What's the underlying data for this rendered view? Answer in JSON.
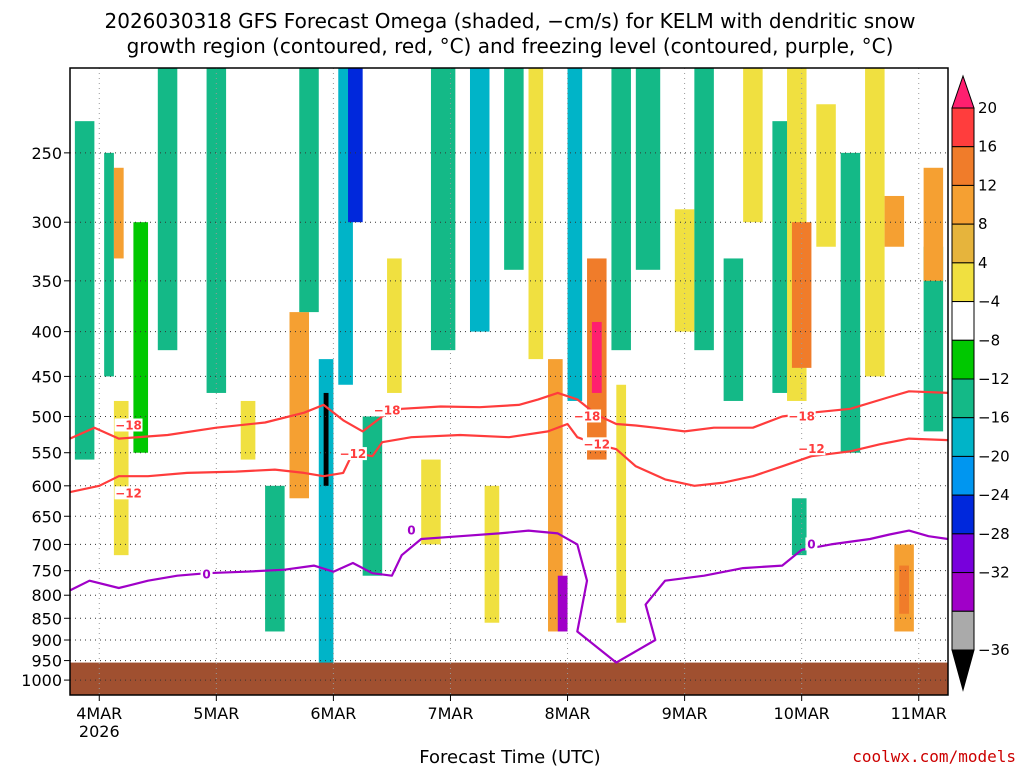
{
  "chart_data": {
    "type": "heatmap",
    "title_lines": [
      "2026030318 GFS Forecast Omega (shaded, −cm/s) for KELM with dendritic snow",
      "growth region (contoured, red, °C) and freezing level (contoured, purple, °C)"
    ],
    "xlabel": "Forecast Time (UTC)",
    "x_ticks": [
      {
        "label": "4MAR",
        "t": 6,
        "sub": "2026"
      },
      {
        "label": "5MAR",
        "t": 30
      },
      {
        "label": "6MAR",
        "t": 54
      },
      {
        "label": "7MAR",
        "t": 78
      },
      {
        "label": "8MAR",
        "t": 102
      },
      {
        "label": "9MAR",
        "t": 126
      },
      {
        "label": "10MAR",
        "t": 150
      },
      {
        "label": "11MAR",
        "t": 174
      }
    ],
    "xlim_hours": [
      0,
      180
    ],
    "y_scale": "log",
    "ylim_hpa": [
      200,
      1040
    ],
    "y_ticks": [
      250,
      300,
      350,
      400,
      450,
      500,
      550,
      600,
      650,
      700,
      750,
      800,
      850,
      900,
      950,
      1000
    ],
    "grid": true,
    "colorbar": {
      "labels": [
        "20",
        "16",
        "12",
        "8",
        "4",
        "−4",
        "−8",
        "−12",
        "−16",
        "−20",
        "−24",
        "−28",
        "−32",
        "−36"
      ],
      "colors": [
        "#ff1f6f",
        "#ff3d3d",
        "#f07c2a",
        "#f5a032",
        "#e6b43c",
        "#f0e040",
        "#ffffff",
        "#00c800",
        "#14b987",
        "#00b4c8",
        "#0096f0",
        "#0028dc",
        "#7800dc",
        "#a000c8",
        "#aaaaaa",
        "#000000"
      ]
    },
    "omega_cells": [
      {
        "t0": 1,
        "t1": 5,
        "p0": 230,
        "p1": 560,
        "v": -8
      },
      {
        "t0": 7,
        "t1": 9,
        "p0": 250,
        "p1": 450,
        "v": -8
      },
      {
        "t0": 9,
        "t1": 11,
        "p0": 260,
        "p1": 330,
        "v": 8
      },
      {
        "t0": 9,
        "t1": 12,
        "p0": 480,
        "p1": 720,
        "v": 6
      },
      {
        "t0": 13,
        "t1": 16,
        "p0": 300,
        "p1": 550,
        "v": -6
      },
      {
        "t0": 18,
        "t1": 22,
        "p0": 200,
        "p1": 420,
        "v": -8
      },
      {
        "t0": 28,
        "t1": 32,
        "p0": 200,
        "p1": 470,
        "v": -8
      },
      {
        "t0": 35,
        "t1": 38,
        "p0": 480,
        "p1": 560,
        "v": 6
      },
      {
        "t0": 40,
        "t1": 44,
        "p0": 600,
        "p1": 880,
        "v": -8
      },
      {
        "t0": 45,
        "t1": 49,
        "p0": 380,
        "p1": 620,
        "v": 8
      },
      {
        "t0": 47,
        "t1": 51,
        "p0": 200,
        "p1": 380,
        "v": -10
      },
      {
        "t0": 51,
        "t1": 54,
        "p0": 430,
        "p1": 960,
        "v": -14
      },
      {
        "t0": 52,
        "t1": 53,
        "p0": 470,
        "p1": 600,
        "v": -36
      },
      {
        "t0": 55,
        "t1": 58,
        "p0": 200,
        "p1": 460,
        "v": -12
      },
      {
        "t0": 57,
        "t1": 60,
        "p0": 200,
        "p1": 300,
        "v": -20
      },
      {
        "t0": 60,
        "t1": 64,
        "p0": 500,
        "p1": 760,
        "v": -8
      },
      {
        "t0": 65,
        "t1": 68,
        "p0": 330,
        "p1": 470,
        "v": 6
      },
      {
        "t0": 72,
        "t1": 76,
        "p0": 560,
        "p1": 700,
        "v": 6
      },
      {
        "t0": 74,
        "t1": 79,
        "p0": 200,
        "p1": 420,
        "v": -8
      },
      {
        "t0": 82,
        "t1": 86,
        "p0": 200,
        "p1": 400,
        "v": -12
      },
      {
        "t0": 85,
        "t1": 88,
        "p0": 600,
        "p1": 860,
        "v": 6
      },
      {
        "t0": 89,
        "t1": 93,
        "p0": 200,
        "p1": 340,
        "v": -8
      },
      {
        "t0": 94,
        "t1": 97,
        "p0": 200,
        "p1": 430,
        "v": 6
      },
      {
        "t0": 98,
        "t1": 101,
        "p0": 430,
        "p1": 880,
        "v": 10
      },
      {
        "t0": 100,
        "t1": 102,
        "p0": 760,
        "p1": 880,
        "v": -28
      },
      {
        "t0": 102,
        "t1": 105,
        "p0": 200,
        "p1": 480,
        "v": -12
      },
      {
        "t0": 106,
        "t1": 110,
        "p0": 330,
        "p1": 560,
        "v": 14
      },
      {
        "t0": 107,
        "t1": 109,
        "p0": 390,
        "p1": 470,
        "v": 22
      },
      {
        "t0": 111,
        "t1": 115,
        "p0": 200,
        "p1": 420,
        "v": -8
      },
      {
        "t0": 112,
        "t1": 114,
        "p0": 460,
        "p1": 860,
        "v": 6
      },
      {
        "t0": 116,
        "t1": 121,
        "p0": 200,
        "p1": 340,
        "v": -8
      },
      {
        "t0": 124,
        "t1": 128,
        "p0": 290,
        "p1": 400,
        "v": 6
      },
      {
        "t0": 128,
        "t1": 132,
        "p0": 200,
        "p1": 420,
        "v": -8
      },
      {
        "t0": 134,
        "t1": 138,
        "p0": 330,
        "p1": 480,
        "v": -8
      },
      {
        "t0": 138,
        "t1": 142,
        "p0": 200,
        "p1": 300,
        "v": 6
      },
      {
        "t0": 144,
        "t1": 148,
        "p0": 230,
        "p1": 470,
        "v": -8
      },
      {
        "t0": 147,
        "t1": 151,
        "p0": 200,
        "p1": 480,
        "v": 6
      },
      {
        "t0": 148,
        "t1": 152,
        "p0": 300,
        "p1": 440,
        "v": 12
      },
      {
        "t0": 148,
        "t1": 151,
        "p0": 620,
        "p1": 720,
        "v": -10
      },
      {
        "t0": 153,
        "t1": 157,
        "p0": 220,
        "p1": 320,
        "v": 6
      },
      {
        "t0": 158,
        "t1": 162,
        "p0": 250,
        "p1": 550,
        "v": -8
      },
      {
        "t0": 163,
        "t1": 167,
        "p0": 200,
        "p1": 450,
        "v": 6
      },
      {
        "t0": 167,
        "t1": 171,
        "p0": 280,
        "p1": 320,
        "v": 10
      },
      {
        "t0": 169,
        "t1": 173,
        "p0": 700,
        "p1": 880,
        "v": 8
      },
      {
        "t0": 170,
        "t1": 172,
        "p0": 740,
        "p1": 840,
        "v": 14
      },
      {
        "t0": 175,
        "t1": 179,
        "p0": 320,
        "p1": 520,
        "v": -8
      },
      {
        "t0": 175,
        "t1": 179,
        "p0": 260,
        "p1": 350,
        "v": 10
      }
    ],
    "contours": [
      {
        "level": "-18",
        "color": "#ff3c3c",
        "label_at": [
          [
            12,
            512
          ],
          [
            65,
            492
          ],
          [
            106,
            500
          ],
          [
            150,
            500
          ]
        ],
        "points": [
          [
            0,
            530
          ],
          [
            5,
            515
          ],
          [
            10,
            530
          ],
          [
            20,
            525
          ],
          [
            30,
            515
          ],
          [
            40,
            508
          ],
          [
            48,
            495
          ],
          [
            52,
            485
          ],
          [
            56,
            505
          ],
          [
            60,
            520
          ],
          [
            64,
            500
          ],
          [
            68,
            490
          ],
          [
            76,
            487
          ],
          [
            84,
            488
          ],
          [
            92,
            485
          ],
          [
            96,
            478
          ],
          [
            100,
            470
          ],
          [
            104,
            478
          ],
          [
            108,
            498
          ],
          [
            112,
            510
          ],
          [
            116,
            512
          ],
          [
            120,
            515
          ],
          [
            126,
            520
          ],
          [
            132,
            515
          ],
          [
            140,
            515
          ],
          [
            146,
            500
          ],
          [
            152,
            495
          ],
          [
            160,
            490
          ],
          [
            168,
            475
          ],
          [
            172,
            468
          ],
          [
            180,
            470
          ]
        ]
      },
      {
        "level": "-12",
        "color": "#ff3c3c",
        "label_at": [
          [
            12,
            612
          ],
          [
            58,
            552
          ],
          [
            108,
            538
          ],
          [
            152,
            545
          ]
        ],
        "points": [
          [
            0,
            610
          ],
          [
            6,
            600
          ],
          [
            10,
            585
          ],
          [
            16,
            585
          ],
          [
            24,
            580
          ],
          [
            34,
            578
          ],
          [
            42,
            575
          ],
          [
            48,
            580
          ],
          [
            52,
            585
          ],
          [
            56,
            580
          ],
          [
            58,
            550
          ],
          [
            62,
            555
          ],
          [
            64,
            535
          ],
          [
            70,
            528
          ],
          [
            80,
            525
          ],
          [
            90,
            528
          ],
          [
            98,
            520
          ],
          [
            102,
            510
          ],
          [
            104,
            528
          ],
          [
            108,
            538
          ],
          [
            112,
            545
          ],
          [
            116,
            570
          ],
          [
            122,
            590
          ],
          [
            128,
            600
          ],
          [
            134,
            595
          ],
          [
            140,
            585
          ],
          [
            146,
            570
          ],
          [
            152,
            555
          ],
          [
            160,
            548
          ],
          [
            166,
            538
          ],
          [
            172,
            530
          ],
          [
            180,
            532
          ]
        ]
      },
      {
        "level": "0",
        "color": "#a000c8",
        "label_at": [
          [
            28,
            758
          ],
          [
            70,
            675
          ],
          [
            152,
            700
          ]
        ],
        "points": [
          [
            0,
            790
          ],
          [
            4,
            770
          ],
          [
            10,
            785
          ],
          [
            16,
            770
          ],
          [
            22,
            760
          ],
          [
            28,
            755
          ],
          [
            36,
            752
          ],
          [
            44,
            748
          ],
          [
            50,
            740
          ],
          [
            54,
            752
          ],
          [
            58,
            735
          ],
          [
            62,
            755
          ],
          [
            66,
            760
          ],
          [
            68,
            720
          ],
          [
            72,
            690
          ],
          [
            80,
            685
          ],
          [
            88,
            680
          ],
          [
            94,
            675
          ],
          [
            100,
            680
          ],
          [
            104,
            700
          ],
          [
            106,
            770
          ],
          [
            104,
            880
          ],
          [
            112,
            955
          ],
          [
            120,
            900
          ],
          [
            118,
            820
          ],
          [
            122,
            770
          ],
          [
            130,
            760
          ],
          [
            138,
            745
          ],
          [
            146,
            740
          ],
          [
            150,
            710
          ],
          [
            156,
            700
          ],
          [
            164,
            690
          ],
          [
            168,
            682
          ],
          [
            172,
            675
          ],
          [
            176,
            685
          ],
          [
            180,
            690
          ]
        ]
      }
    ],
    "terrain_p": 955,
    "terrain_color": "#a05030"
  },
  "credit": "coolwx.com/models"
}
